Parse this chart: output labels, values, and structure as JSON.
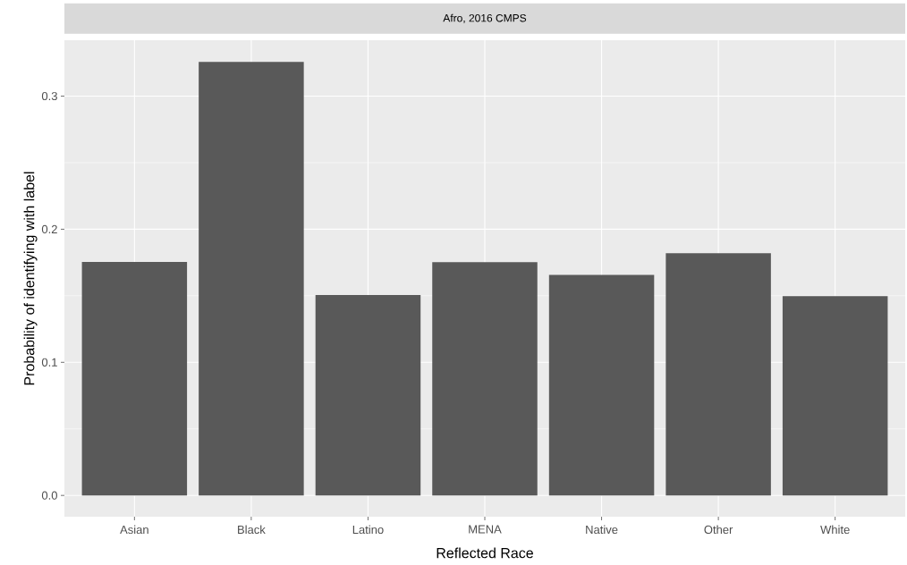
{
  "chart_data": {
    "type": "bar",
    "title": "Afro, 2016 CMPS",
    "xlabel": "Reflected Race",
    "ylabel": "Probability of identifying with label",
    "categories": [
      "Asian",
      "Black",
      "Latino",
      "MENA",
      "Native",
      "Other",
      "White"
    ],
    "values": [
      0.1755,
      0.3257,
      0.1505,
      0.1752,
      0.1657,
      0.1819,
      0.1498
    ],
    "color": "#595959",
    "ylim": [
      -0.016,
      0.342
    ],
    "yticks": [
      {
        "value": 0,
        "label": "0.0"
      },
      0.1,
      0.2,
      0.3
    ],
    "grid": true
  }
}
